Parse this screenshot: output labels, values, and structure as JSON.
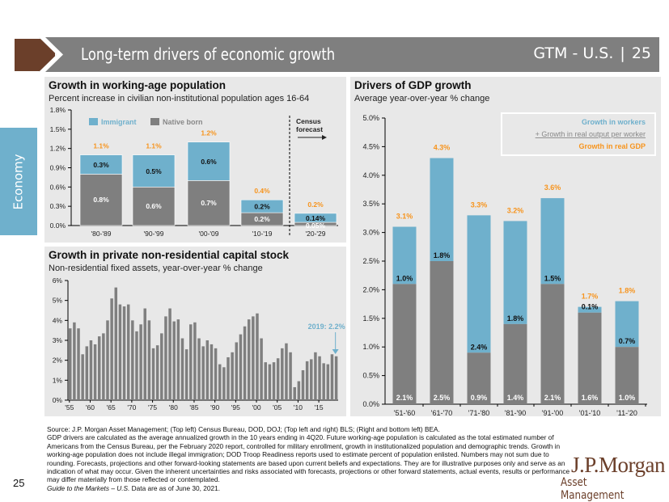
{
  "header": {
    "title": "Long-term drivers of economic growth",
    "section": "GTM - U.S.",
    "page": "25"
  },
  "side_tab": "Economy",
  "colors": {
    "immigrant": "#6fb0cc",
    "native": "#7f7f7f",
    "total": "#f7941d",
    "header": "#7f7f7f",
    "brand": "#6b3f2a"
  },
  "chart_data": [
    {
      "type": "bar",
      "stacked": true,
      "title": "Growth in working-age population",
      "subtitle": "Percent increase in civilian non-institutional population ages 16-64",
      "categories": [
        "'80-'89",
        "'90-'99",
        "'00-'09",
        "'10-'19",
        "'20-'29"
      ],
      "series": [
        {
          "name": "Native born",
          "values": [
            0.8,
            0.6,
            0.7,
            0.2,
            0.05
          ],
          "labels": [
            "0.8%",
            "0.6%",
            "0.7%",
            "0.2%",
            "0.05%"
          ]
        },
        {
          "name": "Immigrant",
          "values": [
            0.3,
            0.5,
            0.6,
            0.2,
            0.14
          ],
          "labels": [
            "0.3%",
            "0.5%",
            "0.6%",
            "0.2%",
            "0.14%"
          ]
        }
      ],
      "totals": [
        1.1,
        1.1,
        1.2,
        0.4,
        0.2
      ],
      "total_labels": [
        "1.1%",
        "1.1%",
        "1.2%",
        "0.4%",
        "0.2%"
      ],
      "ylim": [
        0,
        1.8
      ],
      "yticks": [
        "0.0%",
        "0.3%",
        "0.6%",
        "0.9%",
        "1.2%",
        "1.5%",
        "1.8%"
      ],
      "annotation": {
        "line1": "Census",
        "line2": "forecast"
      },
      "legend": "top-left"
    },
    {
      "type": "bar",
      "title": "Growth in private non-residential capital stock",
      "subtitle": "Non-residential fixed assets, year-over-year % change",
      "x_start": 1955,
      "x_end": 2019,
      "values": [
        3.6,
        3.9,
        3.6,
        2.3,
        2.7,
        3.0,
        2.8,
        3.2,
        3.35,
        4.0,
        5.1,
        5.65,
        4.8,
        4.7,
        4.8,
        4.0,
        3.45,
        3.8,
        4.6,
        4.0,
        2.6,
        2.75,
        3.35,
        4.2,
        4.6,
        3.95,
        4.05,
        3.1,
        2.55,
        3.8,
        3.9,
        3.1,
        2.7,
        3.0,
        2.8,
        2.6,
        1.8,
        1.65,
        2.15,
        2.4,
        2.9,
        3.3,
        3.7,
        4.05,
        4.2,
        4.35,
        3.1,
        1.9,
        1.8,
        1.9,
        2.1,
        2.6,
        2.85,
        2.4,
        0.65,
        0.95,
        1.5,
        1.95,
        2.05,
        2.4,
        2.2,
        1.85,
        1.8,
        2.3,
        2.2
      ],
      "xticks": [
        "'55",
        "'60",
        "'65",
        "'70",
        "'75",
        "'80",
        "'85",
        "'90",
        "'95",
        "'00",
        "'05",
        "'10",
        "'15"
      ],
      "ylim": [
        0,
        6
      ],
      "yticks": [
        "0%",
        "1%",
        "2%",
        "3%",
        "4%",
        "5%",
        "6%"
      ],
      "annotation": "2019: 2.2%"
    },
    {
      "type": "bar",
      "stacked": true,
      "title": "Drivers of GDP growth",
      "subtitle": "Average year-over-year % change",
      "categories": [
        "'51-'60",
        "'61-'70",
        "'71-'80",
        "'81-'90",
        "'91-'00",
        "'01-'10",
        "'11-'20"
      ],
      "series": [
        {
          "name": "Growth in real output per worker",
          "values": [
            2.1,
            2.5,
            0.9,
            1.4,
            2.1,
            1.6,
            1.0
          ],
          "labels": [
            "2.1%",
            "2.5%",
            "0.9%",
            "1.4%",
            "2.1%",
            "1.6%",
            "1.0%"
          ]
        },
        {
          "name": "Growth in workers",
          "values": [
            1.0,
            1.8,
            2.4,
            1.8,
            1.5,
            0.1,
            0.7
          ],
          "labels": [
            "1.0%",
            "1.8%",
            "2.4%",
            "1.8%",
            "1.5%",
            "0.1%",
            "0.7%"
          ]
        }
      ],
      "totals": [
        3.1,
        4.3,
        3.3,
        3.2,
        3.6,
        1.7,
        1.8
      ],
      "total_labels": [
        "3.1%",
        "4.3%",
        "3.3%",
        "3.2%",
        "3.6%",
        "1.7%",
        "1.8%"
      ],
      "ylim": [
        0,
        5
      ],
      "yticks": [
        "0.0%",
        "0.5%",
        "1.0%",
        "1.5%",
        "2.0%",
        "2.5%",
        "3.0%",
        "3.5%",
        "4.0%",
        "4.5%",
        "5.0%"
      ],
      "legend_items": [
        "Growth in workers",
        "+ Growth in real output per worker",
        "Growth in real GDP"
      ],
      "legend": "top-right"
    }
  ],
  "footnote": {
    "source": "Source: J.P. Morgan Asset Management; (Top left) Census Bureau, DOD, DOJ; (Top left and right) BLS; (Right and bottom left) BEA.",
    "body": "GDP drivers are calculated as the average annualized growth in the 10 years ending in 4Q20. Future working-age population is calculated as the total estimated number of Americans from the Census Bureau, per the February 2020 report, controlled for military enrollment, growth in institutionalized population and demographic trends. Growth in working-age population does not include illegal immigration; DOD Troop Readiness reports used to estimate percent of population enlisted. Numbers may not sum due to rounding. Forecasts, projections and other forward-looking statements are based upon current beliefs and expectations. They are for illustrative purposes only and serve as an indication of what may occur. Given the inherent uncertainties and risks associated with forecasts, projections or other forward statements, actual events, results or performance may differ materially from those reflected or contemplated.",
    "guide": "Guide to the Markets – U.S.",
    "asof": " Data are as of June 30, 2021."
  },
  "page_number": "25",
  "logo": {
    "line1": "J.P.Morgan",
    "line2": "Asset Management"
  }
}
